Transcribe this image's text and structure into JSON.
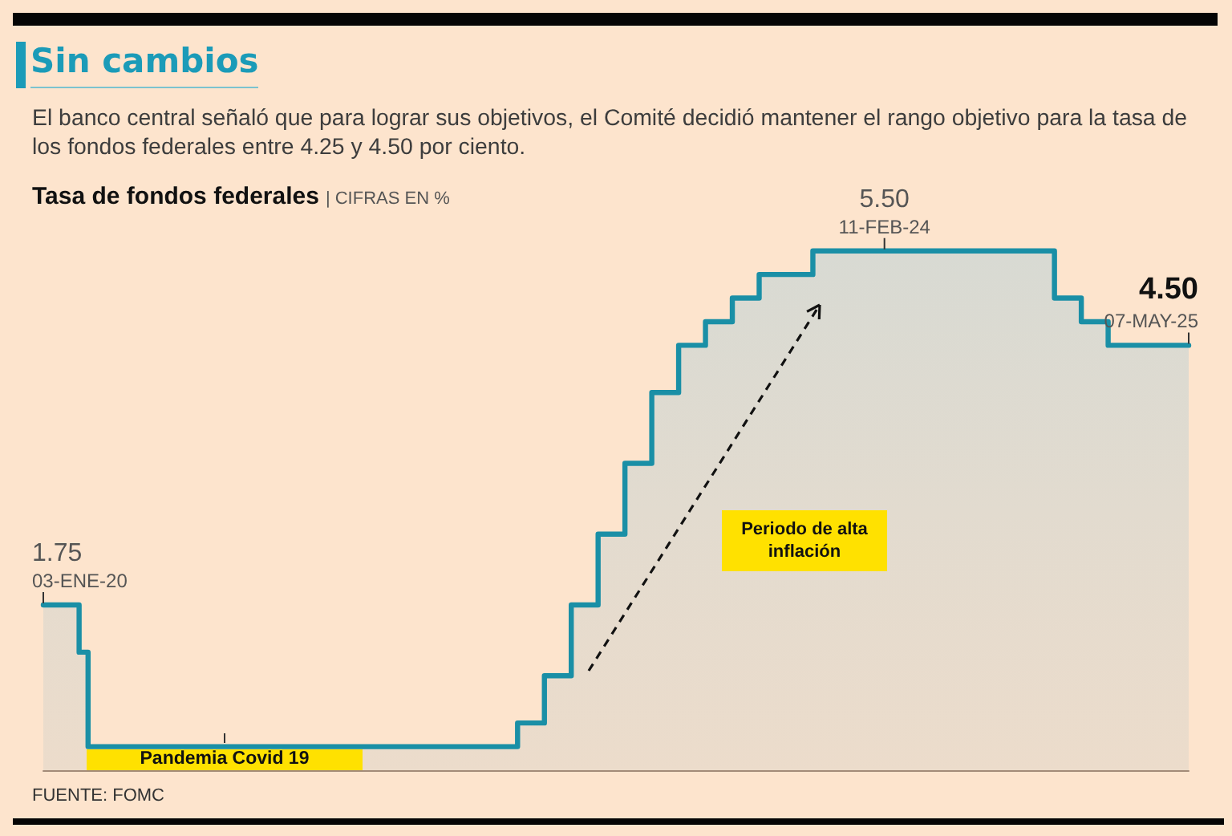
{
  "chart_data": {
    "type": "step",
    "title": "Sin cambios",
    "subtitle": "El banco central señaló que para lograr sus objetivos, el Comité decidió mantener el rango objetivo para la tasa de los fondos federales entre 4.25 y 4.50 por ciento.",
    "ylabel": "Tasa de fondos federales | CIFRAS EN %",
    "categories": [
      null,
      null,
      null,
      null,
      null,
      null,
      null,
      null,
      null,
      null,
      null,
      null,
      null,
      null,
      null,
      null,
      null,
      null,
      null,
      null,
      null,
      null,
      null,
      null,
      null,
      null,
      null,
      null,
      null,
      null,
      null,
      null,
      null,
      null,
      null,
      null,
      null,
      null,
      null,
      null,
      null,
      null,
      null,
      null,
      null,
      null,
      null,
      null,
      null,
      null,
      null,
      null,
      null,
      null,
      null,
      null,
      null,
      null,
      null,
      null,
      null,
      null,
      null,
      null,
      null,
      null,
      null,
      null,
      null,
      null,
      null,
      null,
      null,
      null,
      null,
      null,
      null,
      null,
      null,
      null,
      null,
      null,
      null,
      null,
      null,
      null,
      null,
      null,
      null,
      null,
      null,
      null,
      null,
      null,
      null,
      null,
      null,
      null,
      null,
      null,
      null,
      null,
      null,
      null,
      null,
      null,
      null,
      null,
      null,
      null,
      null,
      null,
      null,
      null,
      null,
      null,
      null,
      null,
      null,
      null,
      null,
      null,
      null,
      null,
      null,
      null,
      null,
      null,
      null
    ],
    "values": [
      1.75,
      1.75,
      1.75,
      1.75,
      1.25,
      0.25,
      0.25,
      0.25,
      0.25,
      0.25,
      0.25,
      0.25,
      0.25,
      0.25,
      0.25,
      0.25,
      0.25,
      0.25,
      0.25,
      0.25,
      0.25,
      0.25,
      0.25,
      0.25,
      0.25,
      0.25,
      0.25,
      0.25,
      0.25,
      0.25,
      0.25,
      0.25,
      0.25,
      0.25,
      0.25,
      0.25,
      0.25,
      0.25,
      0.25,
      0.25,
      0.25,
      0.25,
      0.25,
      0.25,
      0.25,
      0.25,
      0.25,
      0.25,
      0.25,
      0.25,
      0.25,
      0.25,
      0.25,
      0.5,
      0.5,
      0.5,
      1,
      1,
      1,
      1.75,
      1.75,
      1.75,
      2.5,
      2.5,
      2.5,
      3.25,
      3.25,
      3.25,
      4,
      4,
      4,
      4.5,
      4.5,
      4.5,
      4.75,
      4.75,
      4.75,
      5,
      5,
      5,
      5.25,
      5.25,
      5.25,
      5.25,
      5.25,
      5.25,
      5.5,
      5.5,
      5.5,
      5.5,
      5.5,
      5.5,
      5.5,
      5.5,
      5.5,
      5.5,
      5.5,
      5.5,
      5.5,
      5.5,
      5.5,
      5.5,
      5.5,
      5.5,
      5.5,
      5.5,
      5.5,
      5.5,
      5.5,
      5.5,
      5.5,
      5.5,
      5.5,
      5,
      5,
      5,
      4.75,
      4.75,
      4.75,
      4.5,
      4.5,
      4.5,
      4.5,
      4.5,
      4.5,
      4.5,
      4.5,
      4.5,
      4.5
    ],
    "value_labels": [
      "1.75",
      null,
      null,
      null,
      null,
      null,
      null,
      null,
      null,
      null,
      null,
      null,
      null,
      null,
      null,
      null,
      null,
      null,
      null,
      null,
      null,
      null,
      null,
      null,
      null,
      null,
      null,
      null,
      null,
      null,
      null,
      null,
      null,
      null,
      null,
      null,
      null,
      null,
      null,
      null,
      null,
      null,
      null,
      null,
      null,
      null,
      null,
      null,
      null,
      null,
      null,
      null,
      null,
      null,
      null,
      null,
      null,
      null,
      null,
      null,
      null,
      null,
      null,
      null,
      null,
      null,
      null,
      null,
      null,
      null,
      null,
      null,
      null,
      null,
      null,
      null,
      null,
      null,
      null,
      null,
      null,
      null,
      null,
      null,
      null,
      null,
      null,
      null,
      null,
      null,
      null,
      null,
      null,
      null,
      "5.50",
      null,
      null,
      null,
      null,
      null,
      null,
      null,
      null,
      null,
      null,
      null,
      null,
      null,
      null,
      null,
      null,
      null,
      null,
      null,
      null,
      null,
      null,
      null,
      null,
      null,
      null,
      null,
      null,
      null,
      null,
      null,
      null,
      null,
      "4.50"
    ],
    "color": "#1a8fa6",
    "tick_labels": false,
    "marker": "none",
    "line_style": "solid",
    "annotations": [
      "03-ENE-20",
      "11-FEB-24",
      "07-MAY-25",
      "Pandemia Covid 19",
      "Periodo de alta inflación",
      "FUENTE: FOMC"
    ]
  }
}
